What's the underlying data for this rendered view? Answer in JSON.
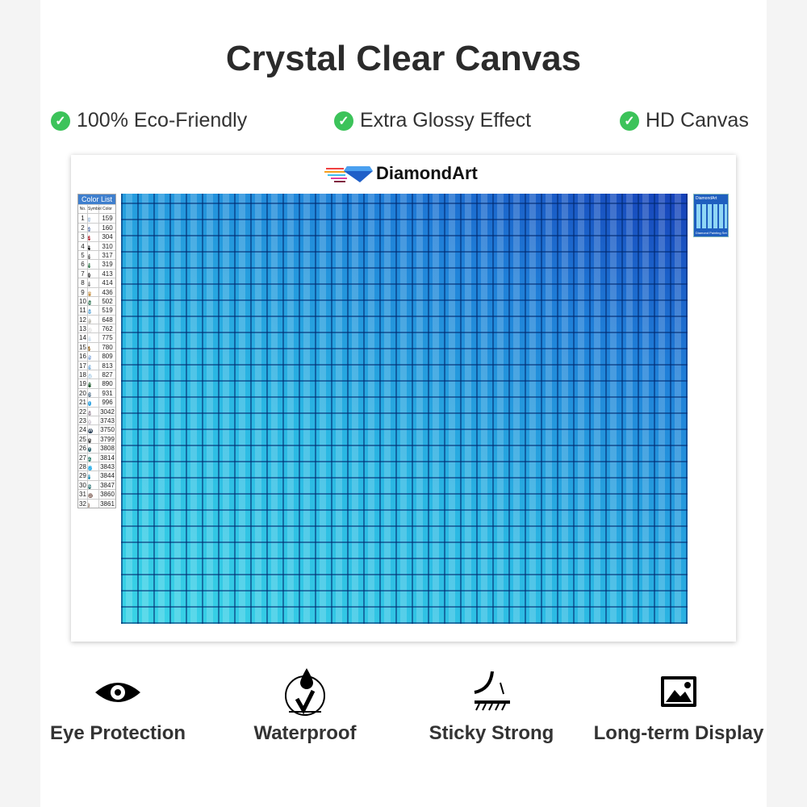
{
  "title": "Crystal Clear Canvas",
  "features": [
    {
      "label": "100% Eco-Friendly",
      "icon": "check-circle-icon"
    },
    {
      "label": "Extra Glossy Effect",
      "icon": "check-circle-icon"
    },
    {
      "label": "HD Canvas",
      "icon": "check-circle-icon"
    }
  ],
  "check_color": "#3cc35a",
  "logo": {
    "text": "DiamondArt"
  },
  "color_list": {
    "title": "Color List",
    "headers": [
      "No.",
      "Symbol",
      "Color"
    ],
    "rows": [
      [
        "1",
        "1",
        "159",
        "#a9c3e0"
      ],
      [
        "2",
        "2",
        "160",
        "#6e88b8"
      ],
      [
        "3",
        "3",
        "304",
        "#b21e2a"
      ],
      [
        "4",
        "4",
        "310",
        "#111111"
      ],
      [
        "5",
        "5",
        "317",
        "#5a5a5a"
      ],
      [
        "6",
        "6",
        "319",
        "#1e6a3a"
      ],
      [
        "7",
        "7",
        "413",
        "#4a4a4a"
      ],
      [
        "8",
        "8",
        "414",
        "#7a7a7a"
      ],
      [
        "9",
        "A",
        "436",
        "#c8944a"
      ],
      [
        "10",
        "C",
        "502",
        "#4f8a6e"
      ],
      [
        "11",
        "D",
        "519",
        "#6eb0dc"
      ],
      [
        "12",
        "F",
        "648",
        "#c2c0b8"
      ],
      [
        "13",
        "G",
        "762",
        "#e6e6e6"
      ],
      [
        "14",
        "H",
        "775",
        "#cfe2f0"
      ],
      [
        "15",
        "J",
        "780",
        "#9a6a24"
      ],
      [
        "16",
        "K",
        "809",
        "#8fb0e0"
      ],
      [
        "17",
        "N",
        "813",
        "#88b8e0"
      ],
      [
        "18",
        "Q",
        "827",
        "#bcd8ec"
      ],
      [
        "19",
        "R",
        "890",
        "#1e5a2e"
      ],
      [
        "20",
        "S",
        "931",
        "#5a7890"
      ],
      [
        "21",
        "T",
        "996",
        "#2aa0e0"
      ],
      [
        "22",
        "U",
        "3042",
        "#a89aa8"
      ],
      [
        "23",
        "V",
        "3743",
        "#d0c8d4"
      ],
      [
        "24",
        "W",
        "3750",
        "#2a4058"
      ],
      [
        "25",
        "X",
        "3799",
        "#3a3a3a"
      ],
      [
        "26",
        "Y",
        "3808",
        "#1e5a66"
      ],
      [
        "27",
        "Z",
        "3814",
        "#2a8070"
      ],
      [
        "28",
        "◇",
        "3843",
        "#18a8e8"
      ],
      [
        "29",
        "#",
        "3844",
        "#1a8ab0"
      ],
      [
        "30",
        "&",
        "3847",
        "#1e6a6a"
      ],
      [
        "31",
        "@",
        "3860",
        "#7a5a50"
      ],
      [
        "32",
        "/",
        "3861",
        "#a08878"
      ]
    ]
  },
  "thumbnail": {
    "logo_text": "DiamondArt",
    "caption": "Diamond Painting Set"
  },
  "bottom_features": [
    {
      "label": "Eye Protection",
      "icon": "eye-icon"
    },
    {
      "label": "Waterproof",
      "icon": "water-drop-icon"
    },
    {
      "label": "Sticky Strong",
      "icon": "adhesive-peel-icon"
    },
    {
      "label": "Long-term Display",
      "icon": "image-icon"
    }
  ]
}
